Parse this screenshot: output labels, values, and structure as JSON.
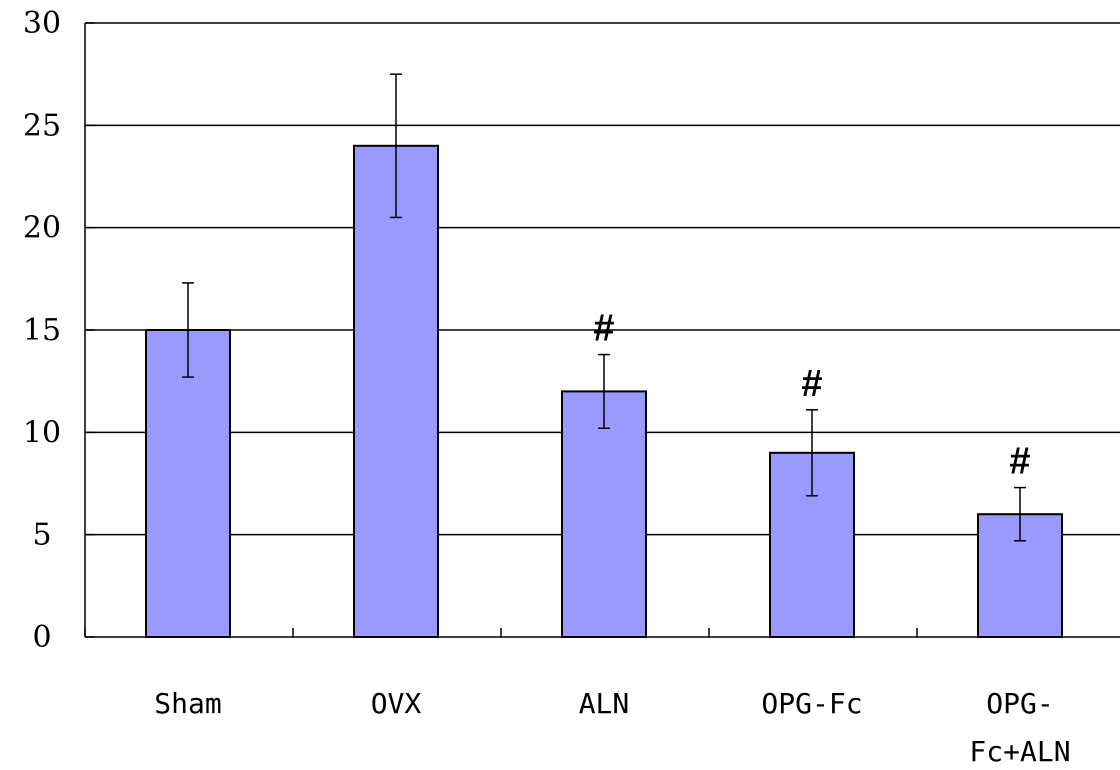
{
  "chart_data": {
    "type": "bar",
    "categories": [
      "Sham",
      "OVX",
      "ALN",
      "OPG-Fc",
      "OPG-Fc+ALN"
    ],
    "category_lines": [
      [
        "Sham"
      ],
      [
        "OVX"
      ],
      [
        "ALN"
      ],
      [
        "OPG-Fc"
      ],
      [
        "OPG-",
        "Fc+ALN"
      ]
    ],
    "values": [
      15,
      24,
      12,
      9,
      6
    ],
    "error_bars": [
      2.3,
      3.5,
      1.8,
      2.1,
      1.3
    ],
    "annotations": [
      "",
      "",
      "#",
      "#",
      "#"
    ],
    "ylim": [
      0,
      30
    ],
    "yticks": [
      0,
      5,
      10,
      15,
      20,
      25,
      30
    ],
    "ytick_labels": [
      "0",
      "5",
      "10",
      "15",
      "20",
      "25",
      "30"
    ],
    "grid": true,
    "colors": {
      "bar_fill": "#9999ff",
      "bar_stroke": "#000000",
      "grid": "#000000"
    }
  }
}
